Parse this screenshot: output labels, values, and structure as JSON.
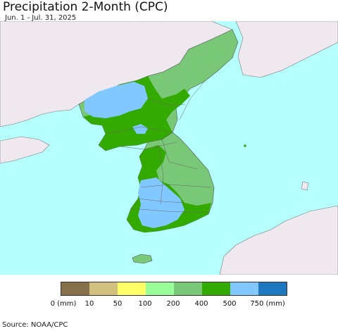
{
  "title": "Precipitation 2-Month (CPC)",
  "subtitle": "Jun. 1 - Jul. 31, 2025",
  "source": "Source: NOAA/CPC",
  "colors": {
    "sea": "#b5ffff",
    "land": "#efe9ef",
    "border": "#666666"
  },
  "legend": {
    "swatches": [
      {
        "color": "#86704a"
      },
      {
        "color": "#d2c07e"
      },
      {
        "color": "#ffff66"
      },
      {
        "color": "#99ff99"
      },
      {
        "color": "#78c878"
      },
      {
        "color": "#33aa00"
      },
      {
        "color": "#80c8ff"
      },
      {
        "color": "#1e78c0"
      }
    ],
    "labels": [
      "0 (mm)",
      "10",
      "50",
      "100",
      "200",
      "400",
      "500",
      "750 (mm)"
    ]
  }
}
